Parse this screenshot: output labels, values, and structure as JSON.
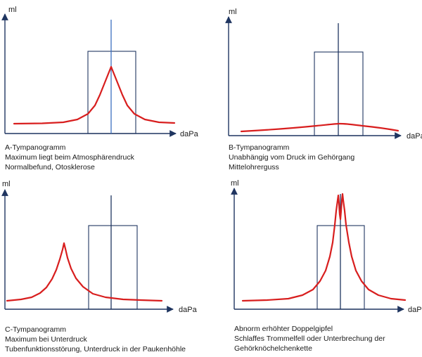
{
  "colors": {
    "curve": "#d81e1e",
    "axis": "#1f3560",
    "zero_line_highlight": "#3b6fc0",
    "text": "#1a1a1a"
  },
  "panels": [
    {
      "id": "A",
      "y_label": "ml",
      "x_label": "daPa",
      "caption": [
        "A-Tympanogramm",
        "Maximum liegt beim Atmosphärendruck",
        "Normalbefund, Otosklerose"
      ],
      "curve": {
        "shape": "single-peak",
        "peak_position": "at-zero",
        "peak_height": 0.58,
        "baseline": 0.08
      }
    },
    {
      "id": "B",
      "y_label": "ml",
      "x_label": "daPa",
      "caption": [
        "B-Tympanogramm",
        "Unabhängig vom Druck im Gehörgang",
        "Mittelohrerguss"
      ],
      "curve": {
        "shape": "flat",
        "peak_position": "at-zero",
        "peak_height": 0.08,
        "baseline": 0.02
      }
    },
    {
      "id": "C",
      "y_label": "ml",
      "x_label": "daPa",
      "caption": [
        "C-Tympanogramm",
        "Maximum bei Unterdruck",
        "Tubenfunktionsstörung, Unterdruck in der Paukenhöhle"
      ],
      "curve": {
        "shape": "single-peak",
        "peak_position": "negative-pressure",
        "peak_height": 0.58,
        "baseline": 0.07
      }
    },
    {
      "id": "D",
      "y_label": "ml",
      "x_label": "daPa",
      "caption": [
        "Abnorm erhöhter Doppelgipfel",
        "Schlaffes Trommelfell oder Unterbrechung der",
        "Gehörknöchelchenkette"
      ],
      "curve": {
        "shape": "double-peak",
        "peak_position": "around-zero",
        "peak_height": 0.98,
        "baseline": 0.07
      }
    }
  ]
}
